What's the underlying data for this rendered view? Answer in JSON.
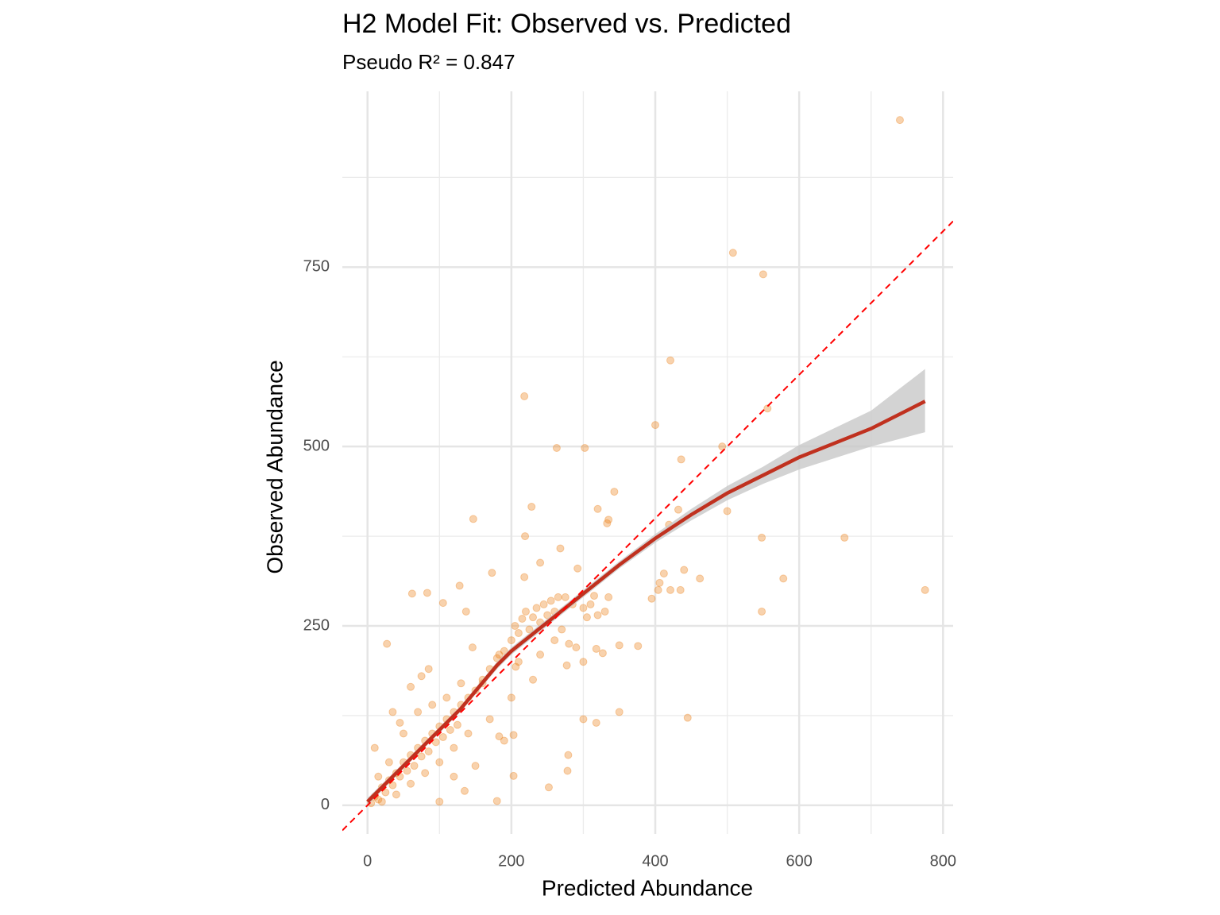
{
  "chart_data": {
    "type": "scatter",
    "title": "H2 Model Fit: Observed vs. Predicted",
    "subtitle": "Pseudo R² = 0.847",
    "x_label": "Predicted Abundance",
    "y_label": "Observed Abundance",
    "xlim": [
      -35,
      814
    ],
    "ylim": [
      -40,
      995
    ],
    "xticks": [
      0,
      200,
      400,
      600,
      800
    ],
    "yticks": [
      0,
      250,
      500,
      750
    ],
    "x_minor": [
      100,
      300,
      500,
      700
    ],
    "y_minor": [
      125,
      375,
      625,
      875
    ],
    "grid": true,
    "point_color": "#ec7e14",
    "point_opacity": 0.35,
    "x": [
      740,
      508,
      550,
      421,
      218,
      400,
      556,
      493,
      263,
      302,
      436,
      147,
      228,
      320,
      343,
      335,
      333,
      419,
      432,
      500,
      548,
      663,
      219,
      268,
      173,
      218,
      240,
      292,
      412,
      440,
      462,
      578,
      775,
      406,
      421,
      435,
      404,
      395,
      62,
      83,
      128,
      27,
      105,
      137,
      548,
      300,
      318,
      350,
      445,
      376,
      350,
      318,
      327,
      279,
      278,
      252,
      203,
      180,
      100,
      146,
      183,
      206,
      290,
      277,
      183,
      203,
      5,
      10,
      15,
      20,
      25,
      30,
      35,
      40,
      45,
      50,
      55,
      60,
      65,
      70,
      75,
      80,
      85,
      90,
      95,
      100,
      105,
      110,
      115,
      120,
      125,
      130,
      140,
      150,
      160,
      170,
      180,
      190,
      200,
      205,
      210,
      215,
      220,
      225,
      230,
      235,
      240,
      245,
      250,
      255,
      260,
      265,
      275,
      285,
      300,
      310,
      320,
      15,
      20,
      30,
      40,
      50,
      60,
      70,
      80,
      90,
      100,
      110,
      120,
      130,
      140,
      10,
      60,
      75,
      85,
      35,
      45,
      120,
      135,
      150,
      160,
      170,
      190,
      200,
      210,
      230,
      240,
      260,
      270,
      280,
      300,
      305,
      330,
      335,
      315
    ],
    "values": [
      955,
      770,
      740,
      620,
      570,
      530,
      553,
      500,
      498,
      498,
      482,
      399,
      416,
      413,
      437,
      398,
      393,
      391,
      412,
      410,
      373,
      373,
      375,
      358,
      324,
      318,
      338,
      330,
      323,
      328,
      316,
      316,
      300,
      310,
      300,
      300,
      300,
      288,
      295,
      296,
      306,
      225,
      282,
      270,
      270,
      120,
      115,
      130,
      122,
      222,
      223,
      218,
      212,
      70,
      48,
      25,
      41,
      6,
      5,
      220,
      210,
      193,
      220,
      195,
      96,
      98,
      3,
      12,
      8,
      25,
      18,
      35,
      28,
      45,
      40,
      60,
      48,
      70,
      55,
      80,
      68,
      90,
      75,
      100,
      88,
      110,
      95,
      120,
      105,
      130,
      112,
      140,
      150,
      160,
      175,
      190,
      205,
      215,
      230,
      250,
      240,
      260,
      270,
      245,
      262,
      275,
      255,
      280,
      265,
      285,
      270,
      290,
      290,
      280,
      275,
      280,
      265,
      40,
      5,
      60,
      15,
      100,
      30,
      130,
      45,
      140,
      60,
      150,
      80,
      170,
      100,
      80,
      165,
      180,
      190,
      130,
      115,
      40,
      20,
      55,
      170,
      120,
      90,
      150,
      200,
      175,
      210,
      230,
      245,
      225,
      200,
      262,
      270,
      290,
      292
    ],
    "fit": {
      "color": "#c0311f",
      "band_color": "#c8c8c8",
      "x": [
        0,
        50,
        100,
        130,
        180,
        200,
        250,
        300,
        350,
        400,
        450,
        500,
        550,
        600,
        650,
        700,
        775
      ],
      "values": [
        5,
        55,
        105,
        135,
        195,
        215,
        255,
        295,
        335,
        372,
        405,
        435,
        460,
        485,
        505,
        525,
        563
      ],
      "lower": [
        0,
        51,
        101,
        131,
        190,
        210,
        250,
        290,
        330,
        366,
        397,
        425,
        448,
        468,
        484,
        500,
        520
      ],
      "upper": [
        10,
        59,
        109,
        139,
        200,
        220,
        260,
        300,
        340,
        378,
        413,
        445,
        472,
        502,
        526,
        550,
        608
      ]
    },
    "reference_line": {
      "slope": 1,
      "intercept": 0,
      "color": "#ff0000"
    }
  }
}
